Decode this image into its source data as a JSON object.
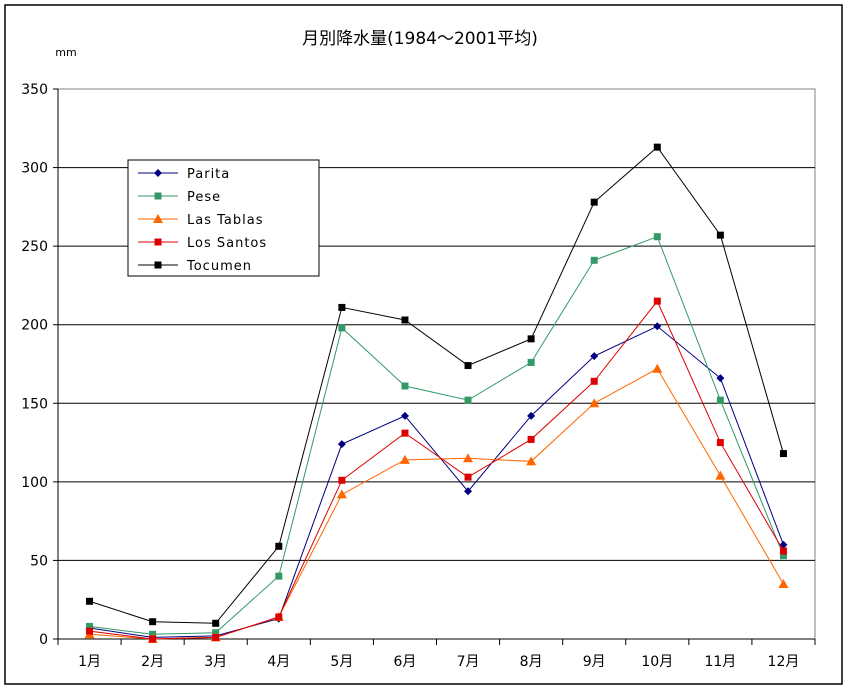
{
  "chart_data": {
    "type": "line",
    "title": "月別降水量(1984～2001平均)",
    "ylabel": "mm",
    "xlabel": "",
    "categories": [
      "1月",
      "2月",
      "3月",
      "4月",
      "5月",
      "6月",
      "7月",
      "8月",
      "9月",
      "10月",
      "11月",
      "12月"
    ],
    "ylim": [
      0,
      350
    ],
    "yticks": [
      0,
      50,
      100,
      150,
      200,
      250,
      300,
      350
    ],
    "grid": "horizontal",
    "legend_position": "top-left",
    "series": [
      {
        "name": "Parita",
        "color": "#000080",
        "marker": "diamond",
        "values": [
          7,
          1,
          2,
          13,
          124,
          142,
          94,
          142,
          180,
          199,
          166,
          60
        ]
      },
      {
        "name": "Pese",
        "color": "#339966",
        "marker": "square",
        "values": [
          8,
          3,
          4,
          40,
          198,
          161,
          152,
          176,
          241,
          256,
          152,
          53
        ]
      },
      {
        "name": "Las Tablas",
        "color": "#FF6600",
        "marker": "triangle",
        "values": [
          3,
          0,
          1,
          14,
          92,
          114,
          115,
          113,
          150,
          172,
          104,
          35
        ]
      },
      {
        "name": "Los Santos",
        "color": "#DD0000",
        "marker": "square",
        "values": [
          5,
          0,
          1,
          14,
          101,
          131,
          103,
          127,
          164,
          215,
          125,
          56
        ]
      },
      {
        "name": "Tocumen",
        "color": "#000000",
        "marker": "square",
        "values": [
          24,
          11,
          10,
          59,
          211,
          203,
          174,
          191,
          278,
          313,
          257,
          118
        ]
      }
    ]
  }
}
